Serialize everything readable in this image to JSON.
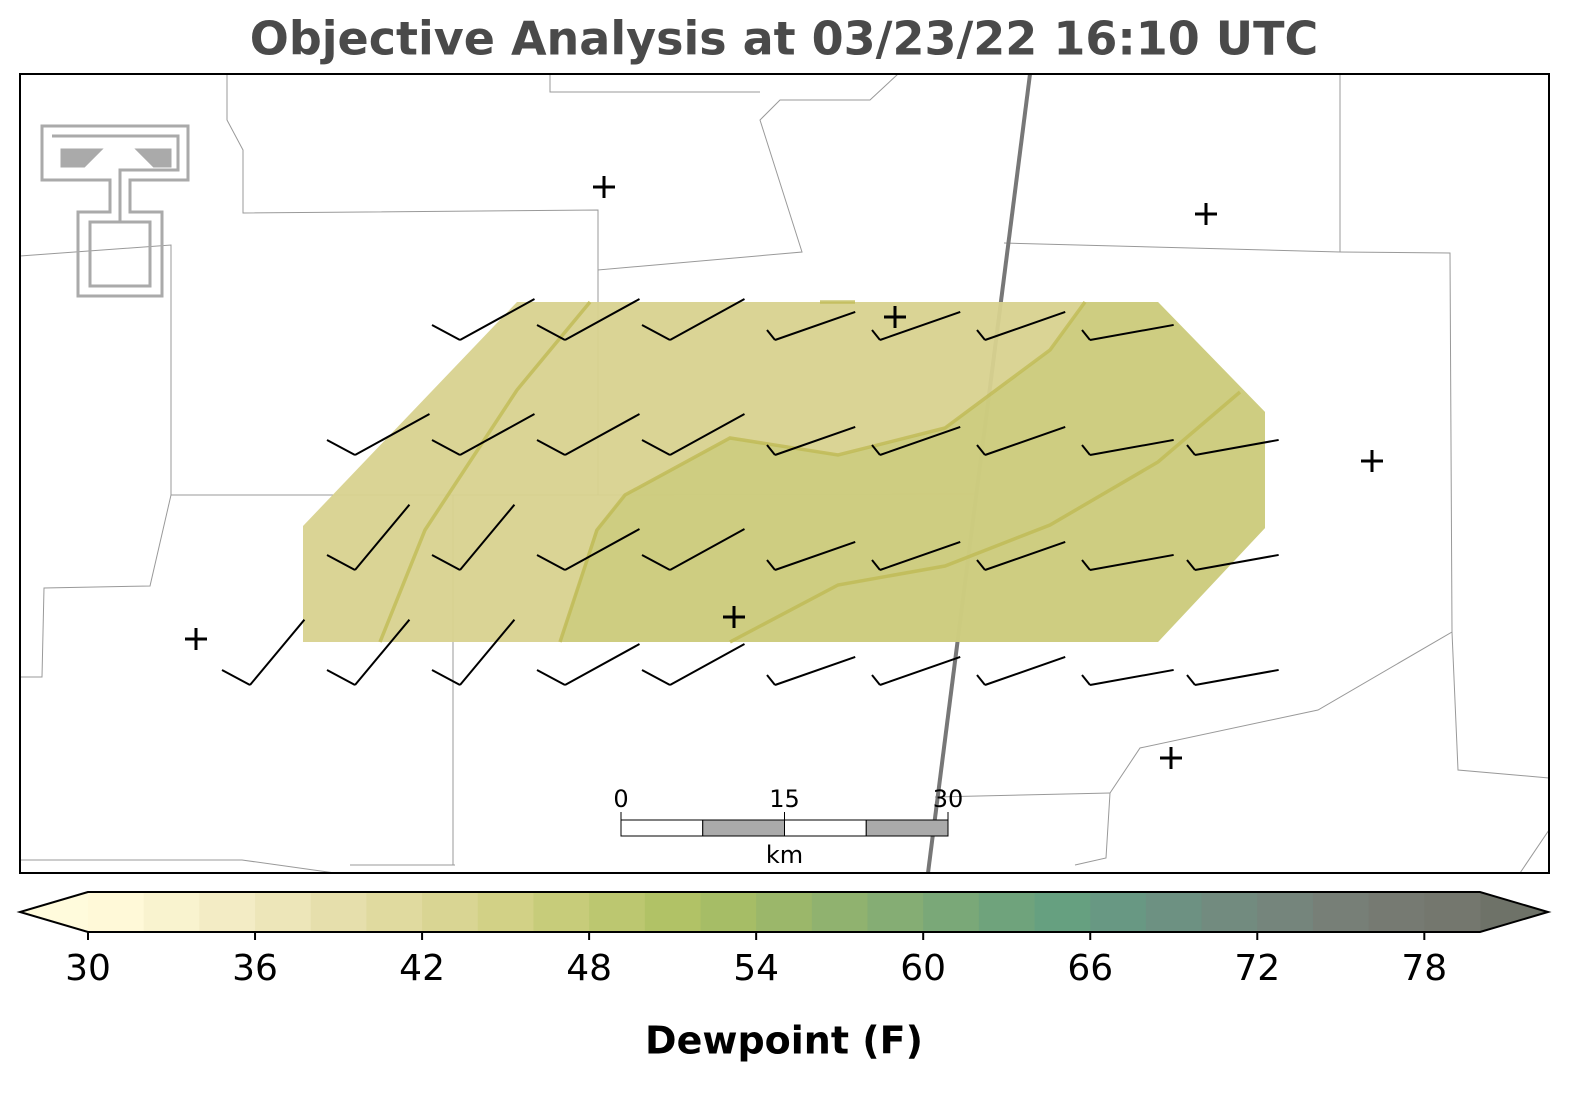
{
  "title": "Objective Analysis at 03/23/22 16:10 UTC",
  "colorbar": {
    "label": "Dewpoint (F)",
    "range": [
      30,
      80
    ],
    "ticks": [
      30,
      36,
      42,
      48,
      54,
      60,
      66,
      72,
      78
    ],
    "colors": [
      "#fff9d8",
      "#f9f3cf",
      "#f3ecc5",
      "#ede6b9",
      "#e6dfac",
      "#e0da9f",
      "#d9d593",
      "#d2d186",
      "#c7cc7a",
      "#bcc770",
      "#b1c266",
      "#a6bd66",
      "#9bb76a",
      "#90b26f",
      "#85ad74",
      "#7aa878",
      "#6fa37c",
      "#66a080",
      "#689883",
      "#6d9182",
      "#728b7f",
      "#75857c",
      "#777f77",
      "#767a72",
      "#74776e"
    ],
    "under_color": "#fffbdc",
    "over_color": "#6e7268"
  },
  "scale_bar": {
    "ticks": [
      0,
      15,
      30
    ],
    "unit": "km"
  }
}
